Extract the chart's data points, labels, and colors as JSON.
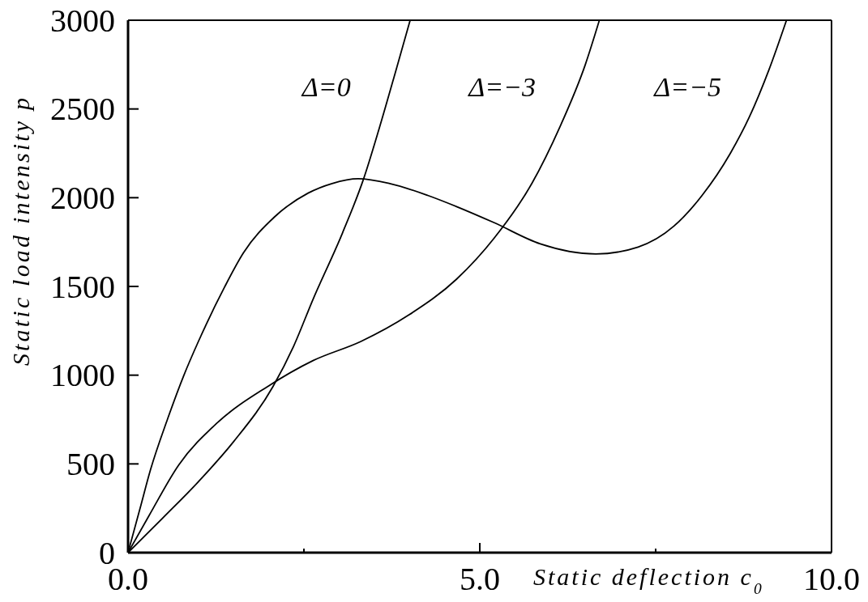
{
  "chart_data": {
    "type": "line",
    "xlabel": "Static deflection c$_{0}$",
    "ylabel": "Static load intensity p",
    "xlim": [
      0,
      10
    ],
    "ylim": [
      0,
      3000
    ],
    "xticks": [
      {
        "value": 0,
        "label": "0.0"
      },
      {
        "value": 2.5,
        "label": null
      },
      {
        "value": 5,
        "label": "5.0"
      },
      {
        "value": 7.5,
        "label": null
      },
      {
        "value": 10,
        "label": "10.0"
      }
    ],
    "yticks": [
      0,
      500,
      1000,
      1500,
      2000,
      2500,
      3000
    ],
    "marker": "none",
    "line_style": "solid",
    "series": [
      {
        "name": "Δ=0",
        "color": "#000000",
        "x": [
          0,
          0.5,
          1,
          1.5,
          2.06,
          2.35,
          2.63,
          3.05,
          3.35,
          3.57,
          3.81,
          4.01
        ],
        "values": [
          0,
          198,
          400,
          625,
          936,
          1160,
          1428,
          1803,
          2108,
          2390,
          2720,
          3000
        ]
      },
      {
        "name": "Δ=−3",
        "color": "#000000",
        "x": [
          0,
          0.3,
          0.72,
          1.27,
          1.98,
          2.63,
          3.31,
          3.99,
          4.67,
          5.2,
          5.74,
          6.14,
          6.5,
          6.7
        ],
        "values": [
          0,
          210,
          494,
          732,
          935,
          1082,
          1190,
          1339,
          1541,
          1770,
          2080,
          2400,
          2750,
          3000
        ]
      },
      {
        "name": "Δ=−5",
        "color": "#000000",
        "x": [
          0,
          0.17,
          0.32,
          0.56,
          0.79,
          1,
          1.37,
          1.64,
          2.08,
          2.56,
          2.9,
          3.27,
          3.72,
          4.26,
          4.67,
          5.2,
          5.86,
          6.65,
          7.25,
          7.76,
          8.16,
          8.56,
          8.83,
          9.11,
          9.36
        ],
        "values": [
          0,
          248,
          468,
          751,
          996,
          1190,
          1495,
          1689,
          1891,
          2026,
          2080,
          2107,
          2080,
          2013,
          1950,
          1860,
          1740,
          1683,
          1722,
          1840,
          2013,
          2249,
          2453,
          2720,
          3000
        ]
      }
    ]
  }
}
